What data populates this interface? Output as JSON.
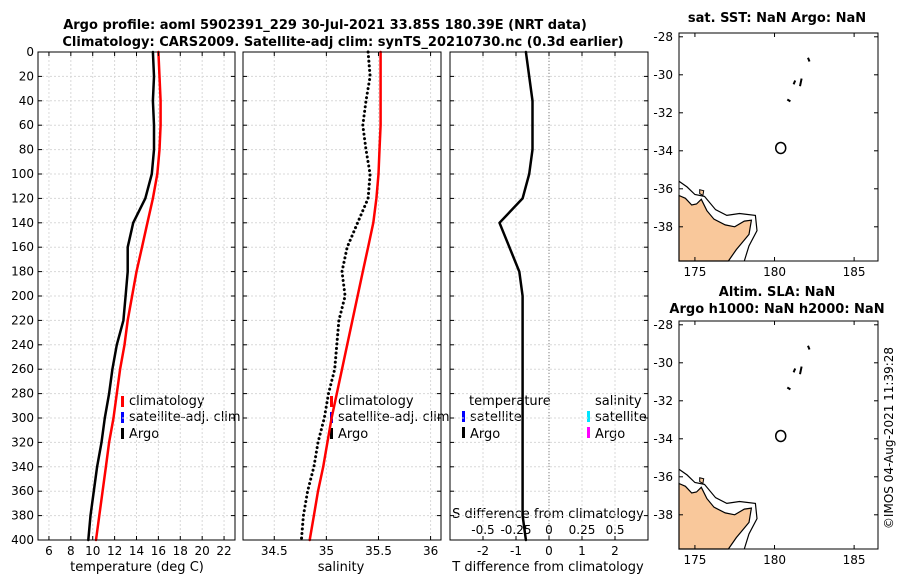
{
  "header": {
    "title_line1": "Argo profile: aoml 5902391_229 30-Jul-2021 33.85S 180.39E (NRT data)",
    "title_line2": "Climatology: CARS2009. Satellite-adj clim: synTS_20210730.nc (0.3d earlier)"
  },
  "watermark": "©IMOS 04-Aug-2021 11:39:28",
  "colors": {
    "climatology": "#ff0000",
    "satellite_adj": "#0000ff",
    "argo": "#000000",
    "sat_temperature": "#0000ff",
    "sat_salinity": "#00e5ff",
    "argo_salinity": "#ff00ff",
    "land": "#f9c89b",
    "zero_line": "#808080"
  },
  "chart_data": [
    {
      "id": "temperature",
      "type": "line",
      "xlabel": "temperature (deg C)",
      "xlim": [
        5,
        23
      ],
      "xticks": [
        6,
        8,
        10,
        12,
        14,
        16,
        18,
        20,
        22
      ],
      "ylim": [
        0,
        400
      ],
      "yticks": [
        0,
        20,
        40,
        60,
        80,
        100,
        120,
        140,
        160,
        180,
        200,
        220,
        240,
        260,
        280,
        300,
        320,
        340,
        360,
        380,
        400
      ],
      "y_reversed": true,
      "grid": true,
      "legend": {
        "position": "mid-right",
        "items": [
          "climatology",
          "satellite-adj. clim",
          "Argo"
        ]
      },
      "series": [
        {
          "name": "climatology",
          "color": "#ff0000",
          "style": "solid",
          "x": [
            16.0,
            16.1,
            16.2,
            16.2,
            16.1,
            15.9,
            15.5,
            15.0,
            14.5,
            14.0,
            13.6,
            13.2,
            12.9,
            12.5,
            12.2,
            11.9,
            11.5,
            11.2,
            10.9,
            10.6,
            10.3
          ],
          "y": [
            0,
            20,
            40,
            60,
            80,
            100,
            120,
            140,
            160,
            180,
            200,
            220,
            240,
            260,
            280,
            300,
            320,
            340,
            360,
            380,
            400
          ]
        },
        {
          "name": "Argo",
          "color": "#000000",
          "style": "solid",
          "x": [
            15.5,
            15.6,
            15.5,
            15.6,
            15.6,
            15.4,
            14.8,
            13.7,
            13.2,
            13.2,
            13.0,
            12.8,
            12.2,
            11.8,
            11.5,
            11.1,
            10.8,
            10.4,
            10.1,
            9.8,
            9.6
          ],
          "y": [
            0,
            20,
            40,
            60,
            80,
            100,
            120,
            140,
            160,
            180,
            200,
            220,
            240,
            260,
            280,
            300,
            320,
            340,
            360,
            380,
            400
          ]
        }
      ]
    },
    {
      "id": "salinity",
      "type": "line",
      "xlabel": "salinity",
      "xlim": [
        34.2,
        36.1
      ],
      "xticks": [
        34.5,
        35,
        35.5,
        36
      ],
      "ylim": [
        0,
        400
      ],
      "y_reversed": true,
      "grid": true,
      "legend": {
        "position": "mid-right",
        "items": [
          "climatology",
          "satellite-adj. clim",
          "Argo"
        ]
      },
      "series": [
        {
          "name": "climatology",
          "color": "#ff0000",
          "style": "solid",
          "x": [
            35.52,
            35.52,
            35.52,
            35.52,
            35.51,
            35.5,
            35.48,
            35.45,
            35.4,
            35.35,
            35.3,
            35.25,
            35.2,
            35.15,
            35.1,
            35.05,
            35.01,
            34.97,
            34.92,
            34.88,
            34.84
          ],
          "y": [
            0,
            20,
            40,
            60,
            80,
            100,
            120,
            140,
            160,
            180,
            200,
            220,
            240,
            260,
            280,
            300,
            320,
            340,
            360,
            380,
            400
          ]
        },
        {
          "name": "Argo",
          "color": "#000000",
          "style": "dotted",
          "x": [
            35.4,
            35.42,
            35.38,
            35.35,
            35.38,
            35.42,
            35.4,
            35.3,
            35.2,
            35.15,
            35.18,
            35.12,
            35.1,
            35.08,
            35.02,
            34.98,
            34.92,
            34.88,
            34.82,
            34.78,
            34.76
          ],
          "y": [
            0,
            20,
            40,
            60,
            80,
            100,
            120,
            140,
            160,
            180,
            200,
            220,
            240,
            260,
            280,
            300,
            320,
            340,
            360,
            380,
            400
          ]
        }
      ]
    },
    {
      "id": "difference",
      "type": "line",
      "xlabel": "T difference from climatology",
      "xlabel_top": "S difference from climatology",
      "xlim": [
        -3,
        3
      ],
      "xticks": [
        -2,
        -1,
        0,
        1,
        2
      ],
      "xticks_top_labels": [
        "-0.5",
        "-0.25",
        "0",
        "0.25",
        "0.5"
      ],
      "ylim": [
        0,
        400
      ],
      "y_reversed": true,
      "grid": true,
      "legend": {
        "position": "mid",
        "groups": [
          {
            "title": "temperature",
            "items": [
              "satellite",
              "Argo"
            ]
          },
          {
            "title": "salinity",
            "items": [
              "satellite",
              "Argo"
            ]
          }
        ]
      },
      "series": [
        {
          "name": "T difference (Argo)",
          "color": "#000000",
          "style": "solid",
          "x": [
            -0.7,
            -0.6,
            -0.5,
            -0.5,
            -0.5,
            -0.6,
            -0.8,
            -1.5,
            -1.2,
            -0.9,
            -0.8,
            -0.8,
            -0.8,
            -0.8,
            -0.8,
            -0.8,
            -0.8,
            -0.8,
            -0.8,
            -0.8,
            -0.7
          ],
          "y": [
            0,
            20,
            40,
            60,
            80,
            100,
            120,
            140,
            160,
            180,
            200,
            220,
            240,
            260,
            280,
            300,
            320,
            340,
            360,
            380,
            400
          ]
        }
      ]
    },
    {
      "id": "sst_map",
      "type": "scatter",
      "title": "sat. SST: NaN Argo: NaN",
      "xlim": [
        174,
        186.5
      ],
      "xticks": [
        175,
        180,
        185
      ],
      "ylim": [
        -39.8,
        -27.8
      ],
      "yticks": [
        -28,
        -30,
        -32,
        -34,
        -36,
        -38
      ],
      "points": [
        {
          "name": "profile location",
          "x": 180.39,
          "y": -33.85
        }
      ]
    },
    {
      "id": "sla_map",
      "type": "scatter",
      "title_line1": "Altim. SLA: NaN",
      "title_line2": "Argo h1000: NaN h2000: NaN",
      "xlim": [
        174,
        186.5
      ],
      "xticks": [
        175,
        180,
        185
      ],
      "ylim": [
        -39.8,
        -27.8
      ],
      "yticks": [
        -28,
        -30,
        -32,
        -34,
        -36,
        -38
      ],
      "points": [
        {
          "name": "profile location",
          "x": 180.39,
          "y": -33.85
        }
      ]
    }
  ]
}
